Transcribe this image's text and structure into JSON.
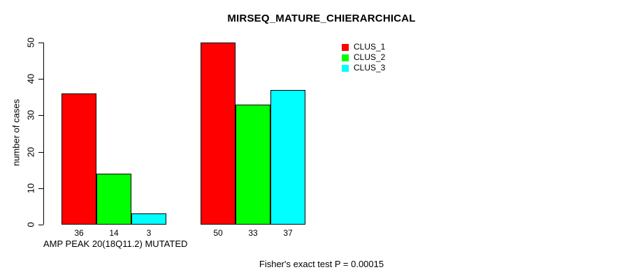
{
  "title": "MIRSEQ_MATURE_CHIERARCHICAL",
  "chart_data": {
    "type": "bar",
    "title": "MIRSEQ_MATURE_CHIERARCHICAL",
    "xlabel": "",
    "ylabel": "number of cases",
    "ylim": [
      0,
      50
    ],
    "yticks": [
      0,
      10,
      20,
      30,
      40,
      50
    ],
    "grid": false,
    "legend_position": "top-right",
    "series": [
      {
        "name": "CLUS_1",
        "color": "#ff0000"
      },
      {
        "name": "CLUS_2",
        "color": "#00ff00"
      },
      {
        "name": "CLUS_3",
        "color": "#00ffff"
      }
    ],
    "groups": [
      {
        "label": "AMP PEAK 20(18Q11.2) MUTATED",
        "values": [
          36,
          14,
          3
        ]
      },
      {
        "label": "",
        "values": [
          50,
          33,
          37
        ]
      }
    ]
  },
  "footer": {
    "stat_text": "Fisher's exact test P = 0.00015"
  }
}
